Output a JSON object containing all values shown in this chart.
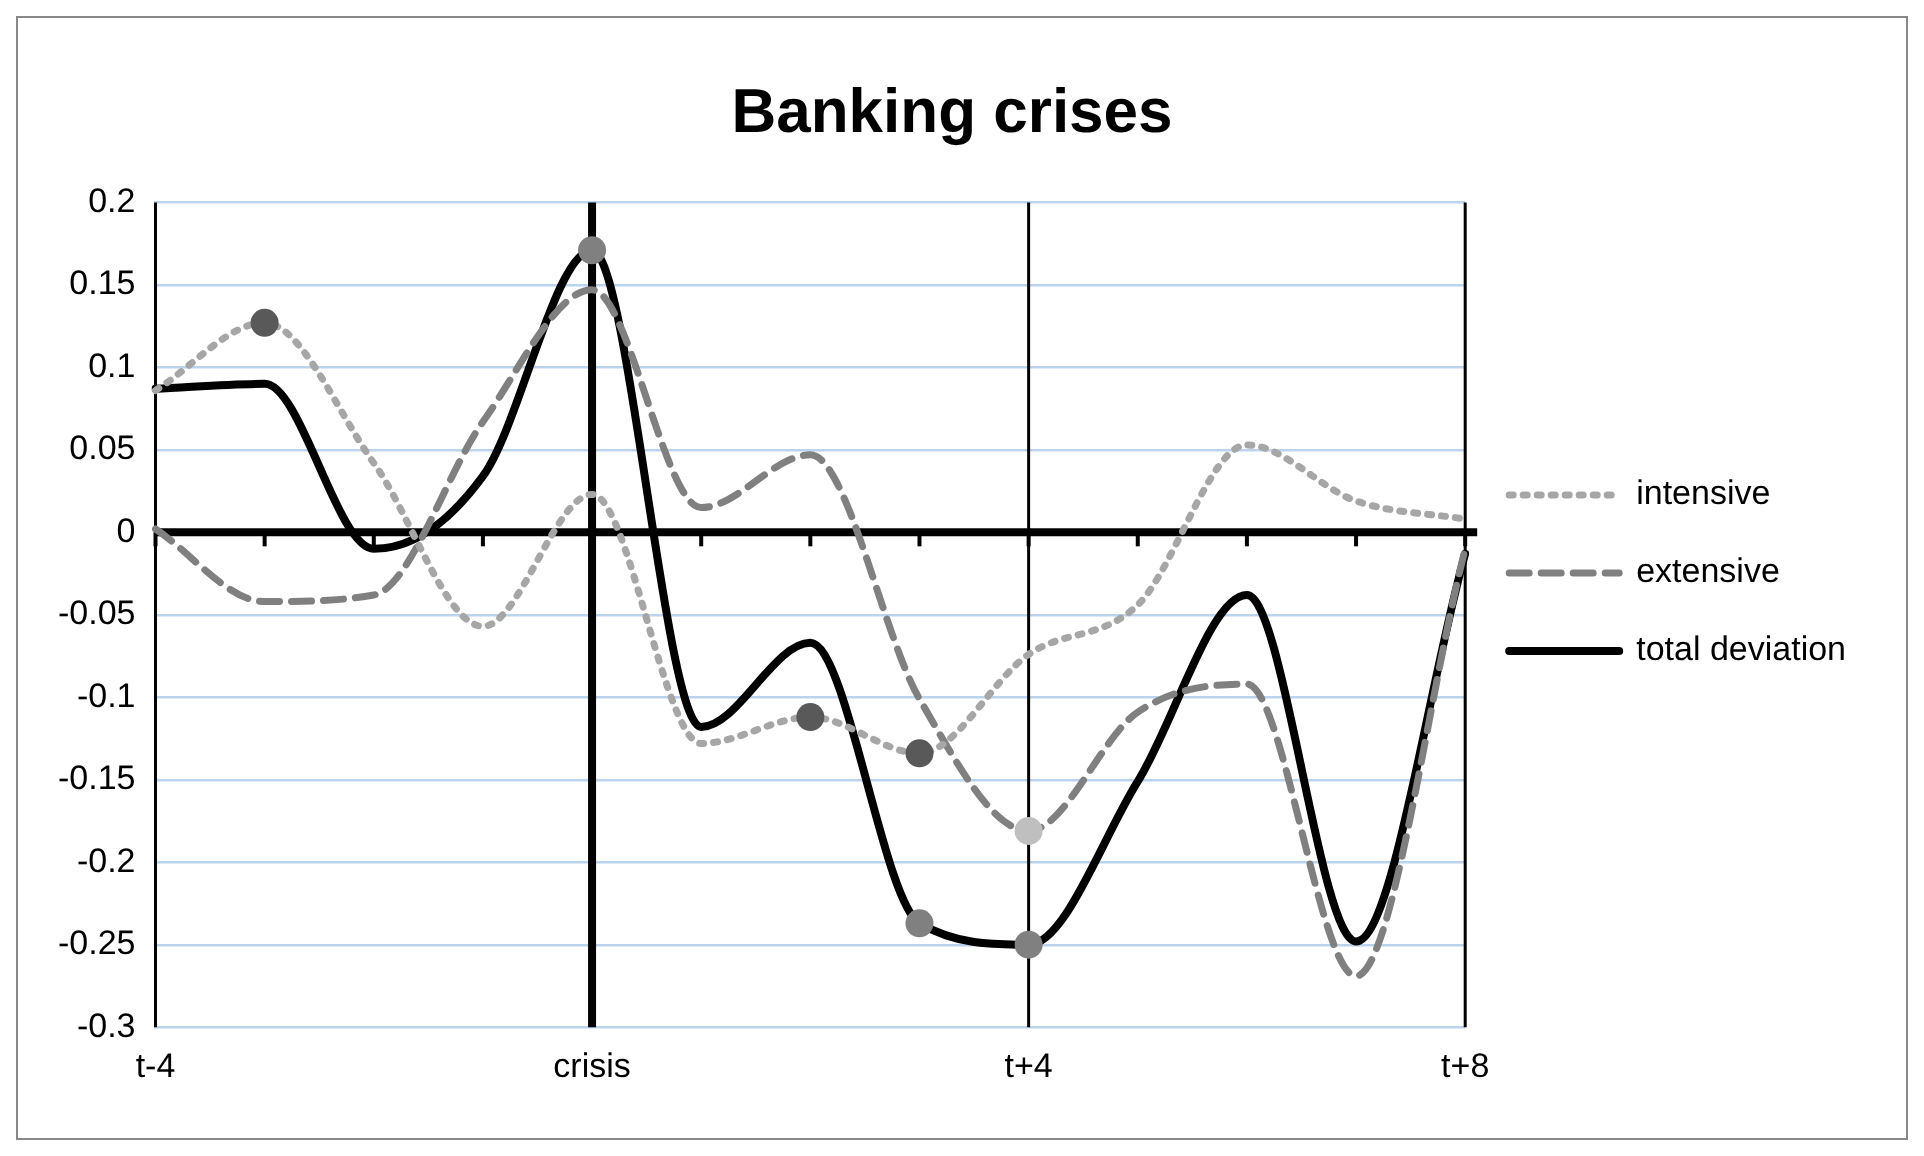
{
  "chart_data": {
    "type": "line",
    "title": "Banking crises",
    "categories": [
      "t-4",
      null,
      null,
      null,
      "crisis",
      null,
      null,
      null,
      "t+4",
      null,
      null,
      null,
      "t+8"
    ],
    "ylim": [
      -0.3,
      0.2
    ],
    "yticks": [
      -0.3,
      -0.25,
      -0.2,
      -0.15,
      -0.1,
      -0.05,
      0,
      0.05,
      0.1,
      0.15,
      0.2
    ],
    "grid": "y",
    "legend": "right",
    "marker": "none",
    "ref_lines": [
      {
        "axis": "x",
        "value": "t-4",
        "color": "#000000"
      },
      {
        "axis": "x",
        "value": "crisis",
        "color": "#000000"
      },
      {
        "axis": "x",
        "value": "t+4",
        "color": "#000000"
      },
      {
        "axis": "x",
        "value": "t+8",
        "color": "#000000"
      }
    ],
    "series": [
      {
        "name": "intensive",
        "color": "#a6a6a6",
        "line_style": "dotted",
        "values": [
          0.086,
          0.127,
          0.042,
          -0.057,
          0.023,
          -0.128,
          -0.112,
          -0.134,
          -0.074,
          -0.044,
          0.053,
          0.019,
          0.008
        ]
      },
      {
        "name": "extensive",
        "color": "#808080",
        "line_style": "dashed",
        "values": [
          0.002,
          -0.042,
          -0.038,
          0.067,
          0.147,
          0.015,
          0.047,
          -0.101,
          -0.181,
          -0.109,
          -0.092,
          -0.269,
          -0.01
        ]
      },
      {
        "name": "total deviation",
        "color": "#000000",
        "line_style": "solid",
        "values": [
          0.087,
          0.09,
          -0.01,
          0.034,
          0.171,
          -0.118,
          -0.067,
          -0.237,
          -0.25,
          -0.151,
          -0.038,
          -0.248,
          -0.013
        ]
      },
      {
        "type": "scatter",
        "marker": "circle",
        "values": [
          null,
          0.127,
          null,
          null,
          0.171,
          null,
          -0.112,
          -0.134,
          -0.181,
          null,
          null,
          null,
          null
        ],
        "colors": [
          null,
          "#595959",
          null,
          null,
          "#808080",
          null,
          "#595959",
          "#595959",
          "#bfbfbf",
          null,
          null,
          null,
          null
        ]
      },
      {
        "type": "scatter",
        "marker": "circle",
        "values": [
          null,
          null,
          null,
          null,
          null,
          null,
          null,
          -0.237,
          -0.25,
          null,
          null,
          null,
          null
        ],
        "colors": [
          null,
          null,
          null,
          null,
          null,
          null,
          null,
          "#808080",
          "#808080",
          null,
          null,
          null,
          null
        ]
      }
    ]
  }
}
